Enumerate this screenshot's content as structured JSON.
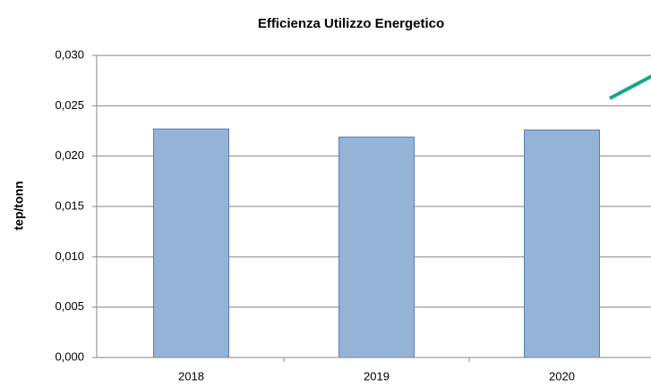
{
  "chart_data": {
    "type": "bar",
    "title": "Efficienza Utilizzo Energetico",
    "y_label": "tep/tonn",
    "categories": [
      "2018",
      "2019",
      "2020"
    ],
    "values": [
      0.0227,
      0.0219,
      0.0226
    ],
    "color": "#95b3d7",
    "ylim": [
      0,
      0.03
    ],
    "yticks": [
      {
        "value": 0,
        "label": "0,000"
      },
      {
        "value": 0.005,
        "label": "0,005"
      },
      {
        "value": 0.01,
        "label": "0,010"
      },
      {
        "value": 0.015,
        "label": "0,015"
      },
      {
        "value": 0.02,
        "label": "0,020"
      },
      {
        "value": 0.025,
        "label": "0,025"
      },
      {
        "value": 0.03,
        "label": "0,030"
      }
    ],
    "grid": true
  }
}
